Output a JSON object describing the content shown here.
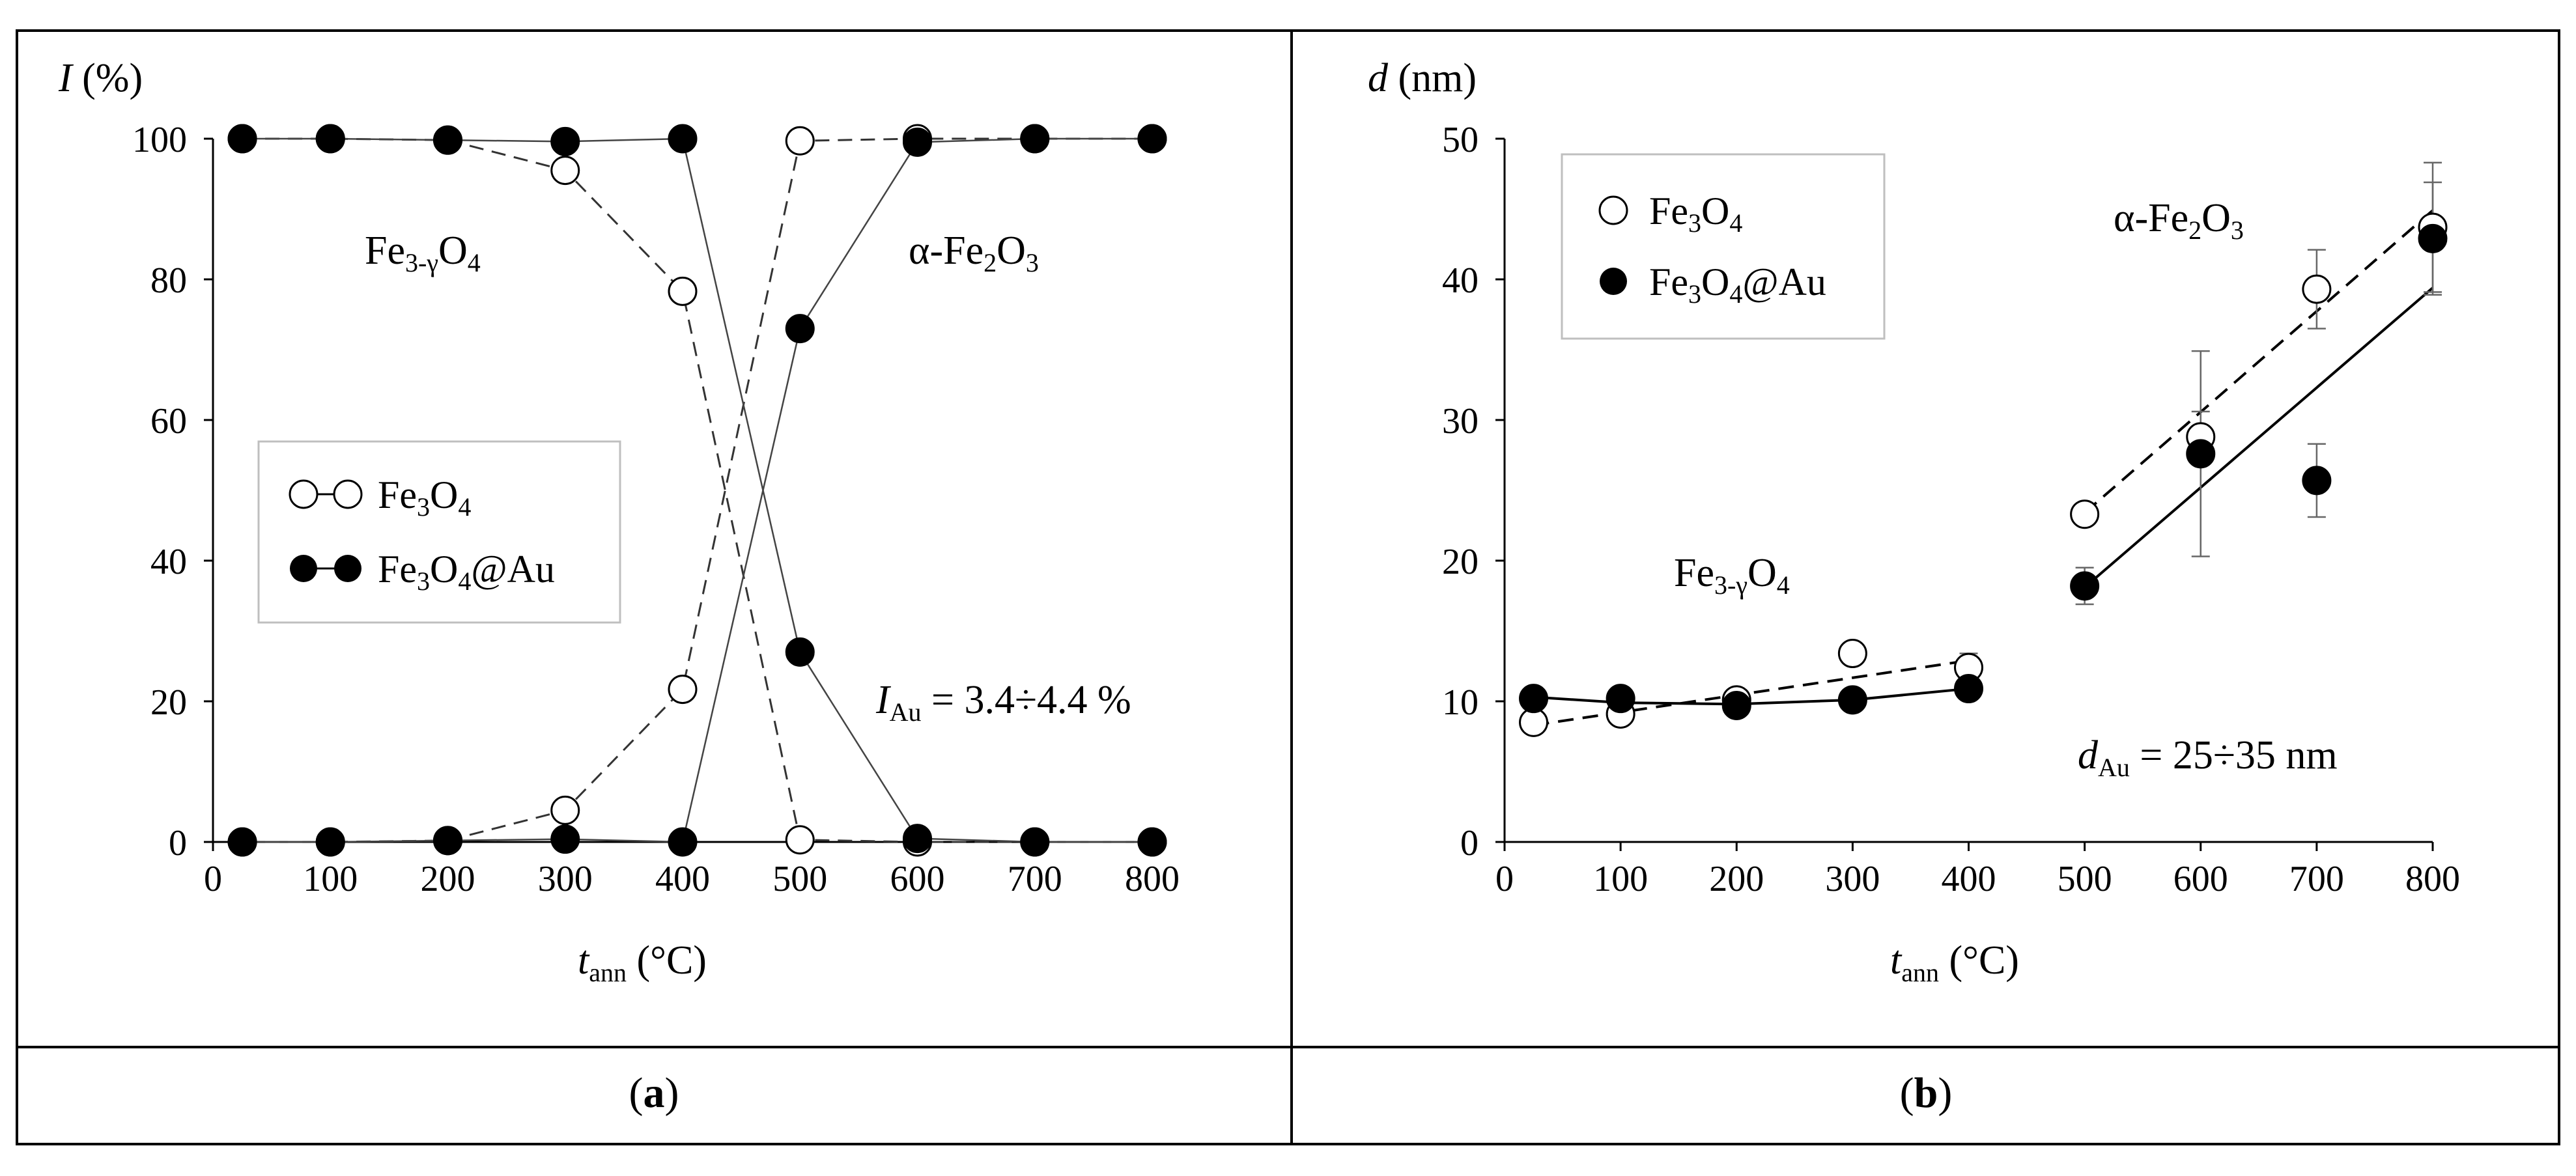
{
  "panels": [
    {
      "caption_letter": "a",
      "ylabel_var": "I",
      "ylabel_unit": " (%)",
      "xlabel_var": "t",
      "xlabel_sub": "ann",
      "xlabel_unit": " (°C)",
      "phase_left": {
        "pre": "Fe",
        "sub": "3-γ",
        "post": "O",
        "sub2": "4"
      },
      "phase_right": {
        "pre": "α-Fe",
        "sub": "2",
        "post": "O",
        "sub2": "3"
      },
      "note": {
        "var": "I",
        "sub": "Au",
        "text": " = 3.4÷4.4 %"
      },
      "legend": [
        {
          "pre": "Fe",
          "sub": "3",
          "post": "O",
          "sub2": "4",
          "tail": ""
        },
        {
          "pre": "Fe",
          "sub": "3",
          "post": "O",
          "sub2": "4",
          "tail": "@Au"
        }
      ]
    },
    {
      "caption_letter": "b",
      "ylabel_var": "d",
      "ylabel_unit": " (nm)",
      "xlabel_var": "t",
      "xlabel_sub": "ann",
      "xlabel_unit": " (°C)",
      "phase_left": {
        "pre": "Fe",
        "sub": "3-γ",
        "post": "O",
        "sub2": "4"
      },
      "phase_right": {
        "pre": "α-Fe",
        "sub": "2",
        "post": "O",
        "sub2": "3"
      },
      "note": {
        "var": "d",
        "sub": "Au",
        "text": " = 25÷35 nm"
      },
      "legend": [
        {
          "pre": "Fe",
          "sub": "3",
          "post": "O",
          "sub2": "4",
          "tail": ""
        },
        {
          "pre": "Fe",
          "sub": "3",
          "post": "O",
          "sub2": "4",
          "tail": "@Au"
        }
      ]
    }
  ],
  "chart_data": [
    {
      "type": "line",
      "xlim": [
        0,
        800
      ],
      "ylim": [
        0,
        100
      ],
      "xticks": [
        0,
        100,
        200,
        300,
        400,
        500,
        600,
        700,
        800
      ],
      "yticks": [
        0,
        20,
        40,
        60,
        80,
        100
      ],
      "grid": false,
      "legend_position": "left-middle",
      "series": [
        {
          "name": "Fe3O4",
          "marker": "open",
          "phase": "Fe3-γO4",
          "x": [
            25,
            100,
            200,
            300,
            400,
            500,
            600,
            700,
            800
          ],
          "y": [
            100,
            100,
            99.8,
            95.5,
            78.3,
            0.3,
            0,
            0,
            0
          ]
        },
        {
          "name": "Fe3O4",
          "marker": "open",
          "phase": "α-Fe2O3",
          "x": [
            25,
            100,
            200,
            300,
            400,
            500,
            600,
            700,
            800
          ],
          "y": [
            0,
            0,
            0.2,
            4.5,
            21.7,
            99.7,
            100,
            100,
            100
          ]
        },
        {
          "name": "Fe3O4@Au",
          "marker": "filled",
          "phase": "Fe3-γO4",
          "x": [
            25,
            100,
            200,
            300,
            400,
            500,
            600,
            700,
            800
          ],
          "y": [
            100,
            100,
            99.8,
            99.6,
            100,
            27,
            0.5,
            0,
            0
          ]
        },
        {
          "name": "Fe3O4@Au",
          "marker": "filled",
          "phase": "α-Fe2O3",
          "x": [
            25,
            100,
            200,
            300,
            400,
            500,
            600,
            700,
            800
          ],
          "y": [
            0,
            0,
            0.2,
            0.4,
            0,
            73,
            99.5,
            100,
            100
          ]
        }
      ]
    },
    {
      "type": "scatter",
      "xlim": [
        0,
        800
      ],
      "ylim": [
        0,
        50
      ],
      "xticks": [
        0,
        100,
        200,
        300,
        400,
        500,
        600,
        700,
        800
      ],
      "yticks": [
        0,
        10,
        20,
        30,
        40,
        50
      ],
      "grid": false,
      "legend_position": "top-left",
      "series": [
        {
          "name": "Fe3O4",
          "marker": "open",
          "x": [
            25,
            100,
            200,
            300,
            400,
            500,
            600,
            700,
            800
          ],
          "y": [
            8.5,
            9.1,
            10.1,
            13.4,
            12.4,
            23.3,
            28.8,
            39.3,
            43.7
          ],
          "err": [
            0,
            0,
            0,
            0,
            1.0,
            0,
            1.8,
            2.8,
            4.6
          ]
        },
        {
          "name": "Fe3O4@Au",
          "marker": "filled",
          "x": [
            25,
            100,
            200,
            300,
            400,
            500,
            600,
            700,
            800
          ],
          "y": [
            10.2,
            10.2,
            9.7,
            10.1,
            10.9,
            18.2,
            27.6,
            25.7,
            42.9
          ],
          "err": [
            0,
            0,
            0,
            0,
            0,
            1.3,
            7.3,
            2.6,
            4.0
          ]
        }
      ],
      "fits": [
        {
          "series": "Fe3O4",
          "style": "dashed",
          "x": [
            25,
            400
          ],
          "y": [
            8.3,
            12.9
          ]
        },
        {
          "series": "Fe3O4@Au",
          "style": "solid",
          "x": [
            25,
            100,
            200,
            300,
            400
          ],
          "y": [
            10.3,
            9.9,
            9.8,
            10.1,
            10.9
          ]
        },
        {
          "series": "Fe3O4",
          "style": "dashed",
          "x": [
            500,
            800
          ],
          "y": [
            23.4,
            44.9
          ]
        },
        {
          "series": "Fe3O4@Au",
          "style": "solid",
          "x": [
            500,
            800
          ],
          "y": [
            18.1,
            39.4
          ]
        }
      ]
    }
  ]
}
